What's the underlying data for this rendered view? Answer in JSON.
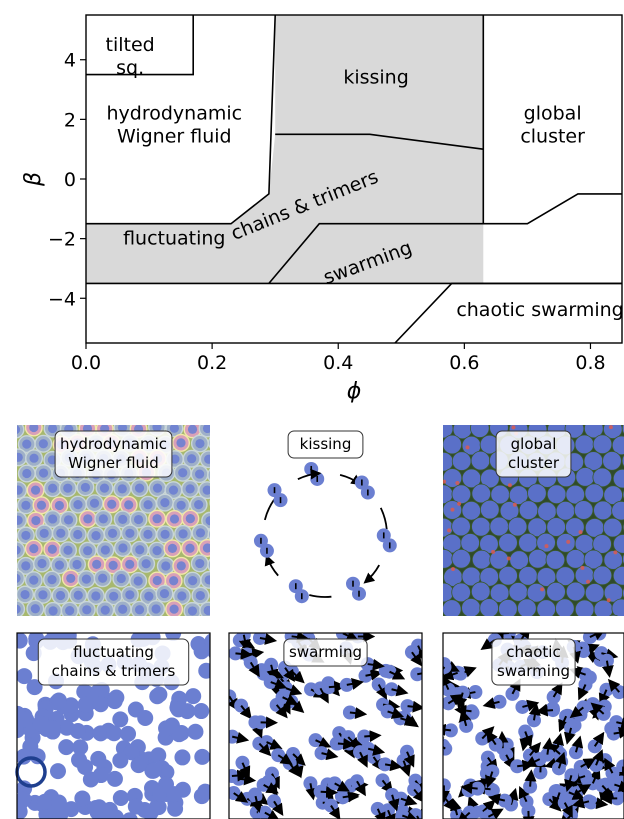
{
  "chart_data": {
    "type": "phase-diagram",
    "xlabel": "ϕ",
    "ylabel": "β",
    "xlim": [
      0.0,
      0.85
    ],
    "ylim": [
      -5.5,
      5.5
    ],
    "x_ticks": [
      "0.0",
      "0.2",
      "0.4",
      "0.6",
      "0.8"
    ],
    "x_tick_values": [
      0.0,
      0.2,
      0.4,
      0.6,
      0.8
    ],
    "y_ticks": [
      "4",
      "2",
      "0",
      "−2",
      "−4"
    ],
    "y_tick_values": [
      4,
      2,
      0,
      -2,
      -4
    ],
    "grid": false,
    "colors": {
      "shaded": "#d9d9d9",
      "line": "#000000",
      "particle": "#6b7fd1",
      "ring": "#1f3f8f"
    },
    "boundaries": [
      {
        "id": "tilted-box",
        "points": [
          [
            0.0,
            3.5
          ],
          [
            0.17,
            3.5
          ],
          [
            0.17,
            5.5
          ]
        ]
      },
      {
        "id": "wigner-edge",
        "points": [
          [
            0.0,
            -1.5
          ],
          [
            0.23,
            -1.5
          ],
          [
            0.29,
            -0.5
          ],
          [
            0.3,
            5.5
          ]
        ]
      },
      {
        "id": "kissing-bottom",
        "points": [
          [
            0.3,
            1.5
          ],
          [
            0.45,
            1.5
          ],
          [
            0.63,
            1.0
          ]
        ]
      },
      {
        "id": "cluster-edge",
        "points": [
          [
            0.63,
            -1.5
          ],
          [
            0.63,
            5.5
          ]
        ]
      },
      {
        "id": "swarm-top",
        "points": [
          [
            0.29,
            -3.5
          ],
          [
            0.37,
            -1.5
          ],
          [
            0.63,
            -1.5
          ],
          [
            0.7,
            -1.5
          ],
          [
            0.78,
            -0.5
          ],
          [
            0.85,
            -0.5
          ]
        ]
      },
      {
        "id": "swarm-bottom",
        "points": [
          [
            0.0,
            -3.5
          ],
          [
            0.63,
            -3.5
          ],
          [
            0.85,
            -3.5
          ]
        ]
      },
      {
        "id": "chaotic-edge",
        "points": [
          [
            0.49,
            -5.5
          ],
          [
            0.58,
            -3.5
          ],
          [
            0.85,
            -3.5
          ]
        ]
      }
    ],
    "shaded_regions": [
      {
        "id": "kissing",
        "points": [
          [
            0.3,
            5.5
          ],
          [
            0.63,
            5.5
          ],
          [
            0.63,
            1.0
          ],
          [
            0.45,
            1.5
          ],
          [
            0.3,
            1.5
          ]
        ]
      },
      {
        "id": "chains",
        "points": [
          [
            0.3,
            1.5
          ],
          [
            0.45,
            1.5
          ],
          [
            0.63,
            1.0
          ],
          [
            0.63,
            -1.5
          ],
          [
            0.37,
            -1.5
          ],
          [
            0.29,
            -3.5
          ],
          [
            0.0,
            -3.5
          ],
          [
            0.0,
            -1.5
          ],
          [
            0.23,
            -1.5
          ],
          [
            0.29,
            -0.5
          ]
        ]
      },
      {
        "id": "swarm-strip",
        "points": [
          [
            0.29,
            -3.5
          ],
          [
            0.37,
            -1.5
          ],
          [
            0.63,
            -1.5
          ],
          [
            0.63,
            -3.5
          ]
        ]
      }
    ],
    "region_labels": [
      {
        "id": "tilted",
        "lines": [
          "tilted",
          "sq."
        ],
        "x": 0.07,
        "y": 4.3,
        "anchor": "middle"
      },
      {
        "id": "wigner",
        "lines": [
          "hydrodynamic",
          "Wigner fluid"
        ],
        "x": 0.14,
        "y": 2.0,
        "anchor": "middle"
      },
      {
        "id": "kissing",
        "lines": [
          "kissing"
        ],
        "x": 0.46,
        "y": 3.2,
        "anchor": "middle"
      },
      {
        "id": "global",
        "lines": [
          "global",
          "cluster"
        ],
        "x": 0.74,
        "y": 2.0,
        "anchor": "middle"
      },
      {
        "id": "chains",
        "lines": [
          "chains & trimers"
        ],
        "x": 0.39,
        "y": -0.4,
        "anchor": "middle",
        "rotate": 0
      },
      {
        "id": "fluctuating",
        "lines": [
          "fluctuating"
        ],
        "x": 0.14,
        "y": -2.2,
        "anchor": "middle"
      },
      {
        "id": "swarming",
        "lines": [
          "swarming"
        ],
        "x": 0.45,
        "y": -3.0,
        "anchor": "middle",
        "rotate": -20
      },
      {
        "id": "chaotic",
        "lines": [
          "chaotic swarming"
        ],
        "x": 0.72,
        "y": -4.6,
        "anchor": "middle"
      }
    ]
  },
  "panels": [
    {
      "id": "wigner",
      "lines": [
        "hydrodynamic",
        "Wigner fluid"
      ],
      "style": "voronoi"
    },
    {
      "id": "kissing",
      "lines": [
        "kissing"
      ],
      "style": "ring"
    },
    {
      "id": "global",
      "lines": [
        "global",
        "cluster"
      ],
      "style": "dense"
    },
    {
      "id": "fluctuating",
      "lines": [
        "fluctuating",
        "chains & trimers"
      ],
      "style": "sparse"
    },
    {
      "id": "swarming",
      "lines": [
        "swarming"
      ],
      "style": "arrows"
    },
    {
      "id": "chaotic",
      "lines": [
        "chaotic",
        "swarming"
      ],
      "style": "arrows-chaotic"
    }
  ]
}
